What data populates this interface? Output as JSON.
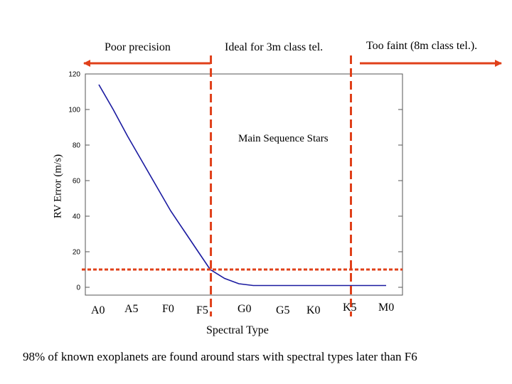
{
  "slide": {
    "footnote": "98% of known exoplanets are found around stars with spectral types later than F6"
  },
  "regions": {
    "poor": "Poor precision",
    "ideal": "Ideal for 3m class tel.",
    "faint": "Too faint (8m class tel.)."
  },
  "colors": {
    "curve": "#1a1aa0",
    "marker": "#e0401a",
    "arrow": "#e0401a"
  },
  "chart_data": {
    "type": "line",
    "title": "",
    "annotation": "Main Sequence Stars",
    "xlabel": "Spectral Type",
    "ylabel": "RV Error (m/s)",
    "categories": [
      "A0",
      "A5",
      "F0",
      "F5",
      "G0",
      "G5",
      "K0",
      "K5",
      "M0"
    ],
    "ylim": [
      0,
      120
    ],
    "yticks": [
      0,
      20,
      40,
      60,
      80,
      100,
      120
    ],
    "series": [
      {
        "name": "RV Error",
        "points": [
          {
            "x": 0.0,
            "y": 114
          },
          {
            "x": 0.4,
            "y": 100
          },
          {
            "x": 0.8,
            "y": 85
          },
          {
            "x": 1.2,
            "y": 71
          },
          {
            "x": 1.6,
            "y": 57
          },
          {
            "x": 2.0,
            "y": 43
          },
          {
            "x": 2.4,
            "y": 31
          },
          {
            "x": 2.8,
            "y": 19
          },
          {
            "x": 3.1,
            "y": 10
          },
          {
            "x": 3.5,
            "y": 5
          },
          {
            "x": 3.9,
            "y": 2
          },
          {
            "x": 4.3,
            "y": 1
          },
          {
            "x": 5.0,
            "y": 1
          },
          {
            "x": 6.0,
            "y": 1
          },
          {
            "x": 7.0,
            "y": 1
          },
          {
            "x": 8.0,
            "y": 1
          }
        ]
      }
    ],
    "threshold_y": 10,
    "verticals": [
      {
        "name": "poor-precision-boundary",
        "x": 3.1
      },
      {
        "name": "too-faint-boundary",
        "x": 7.0
      }
    ]
  }
}
